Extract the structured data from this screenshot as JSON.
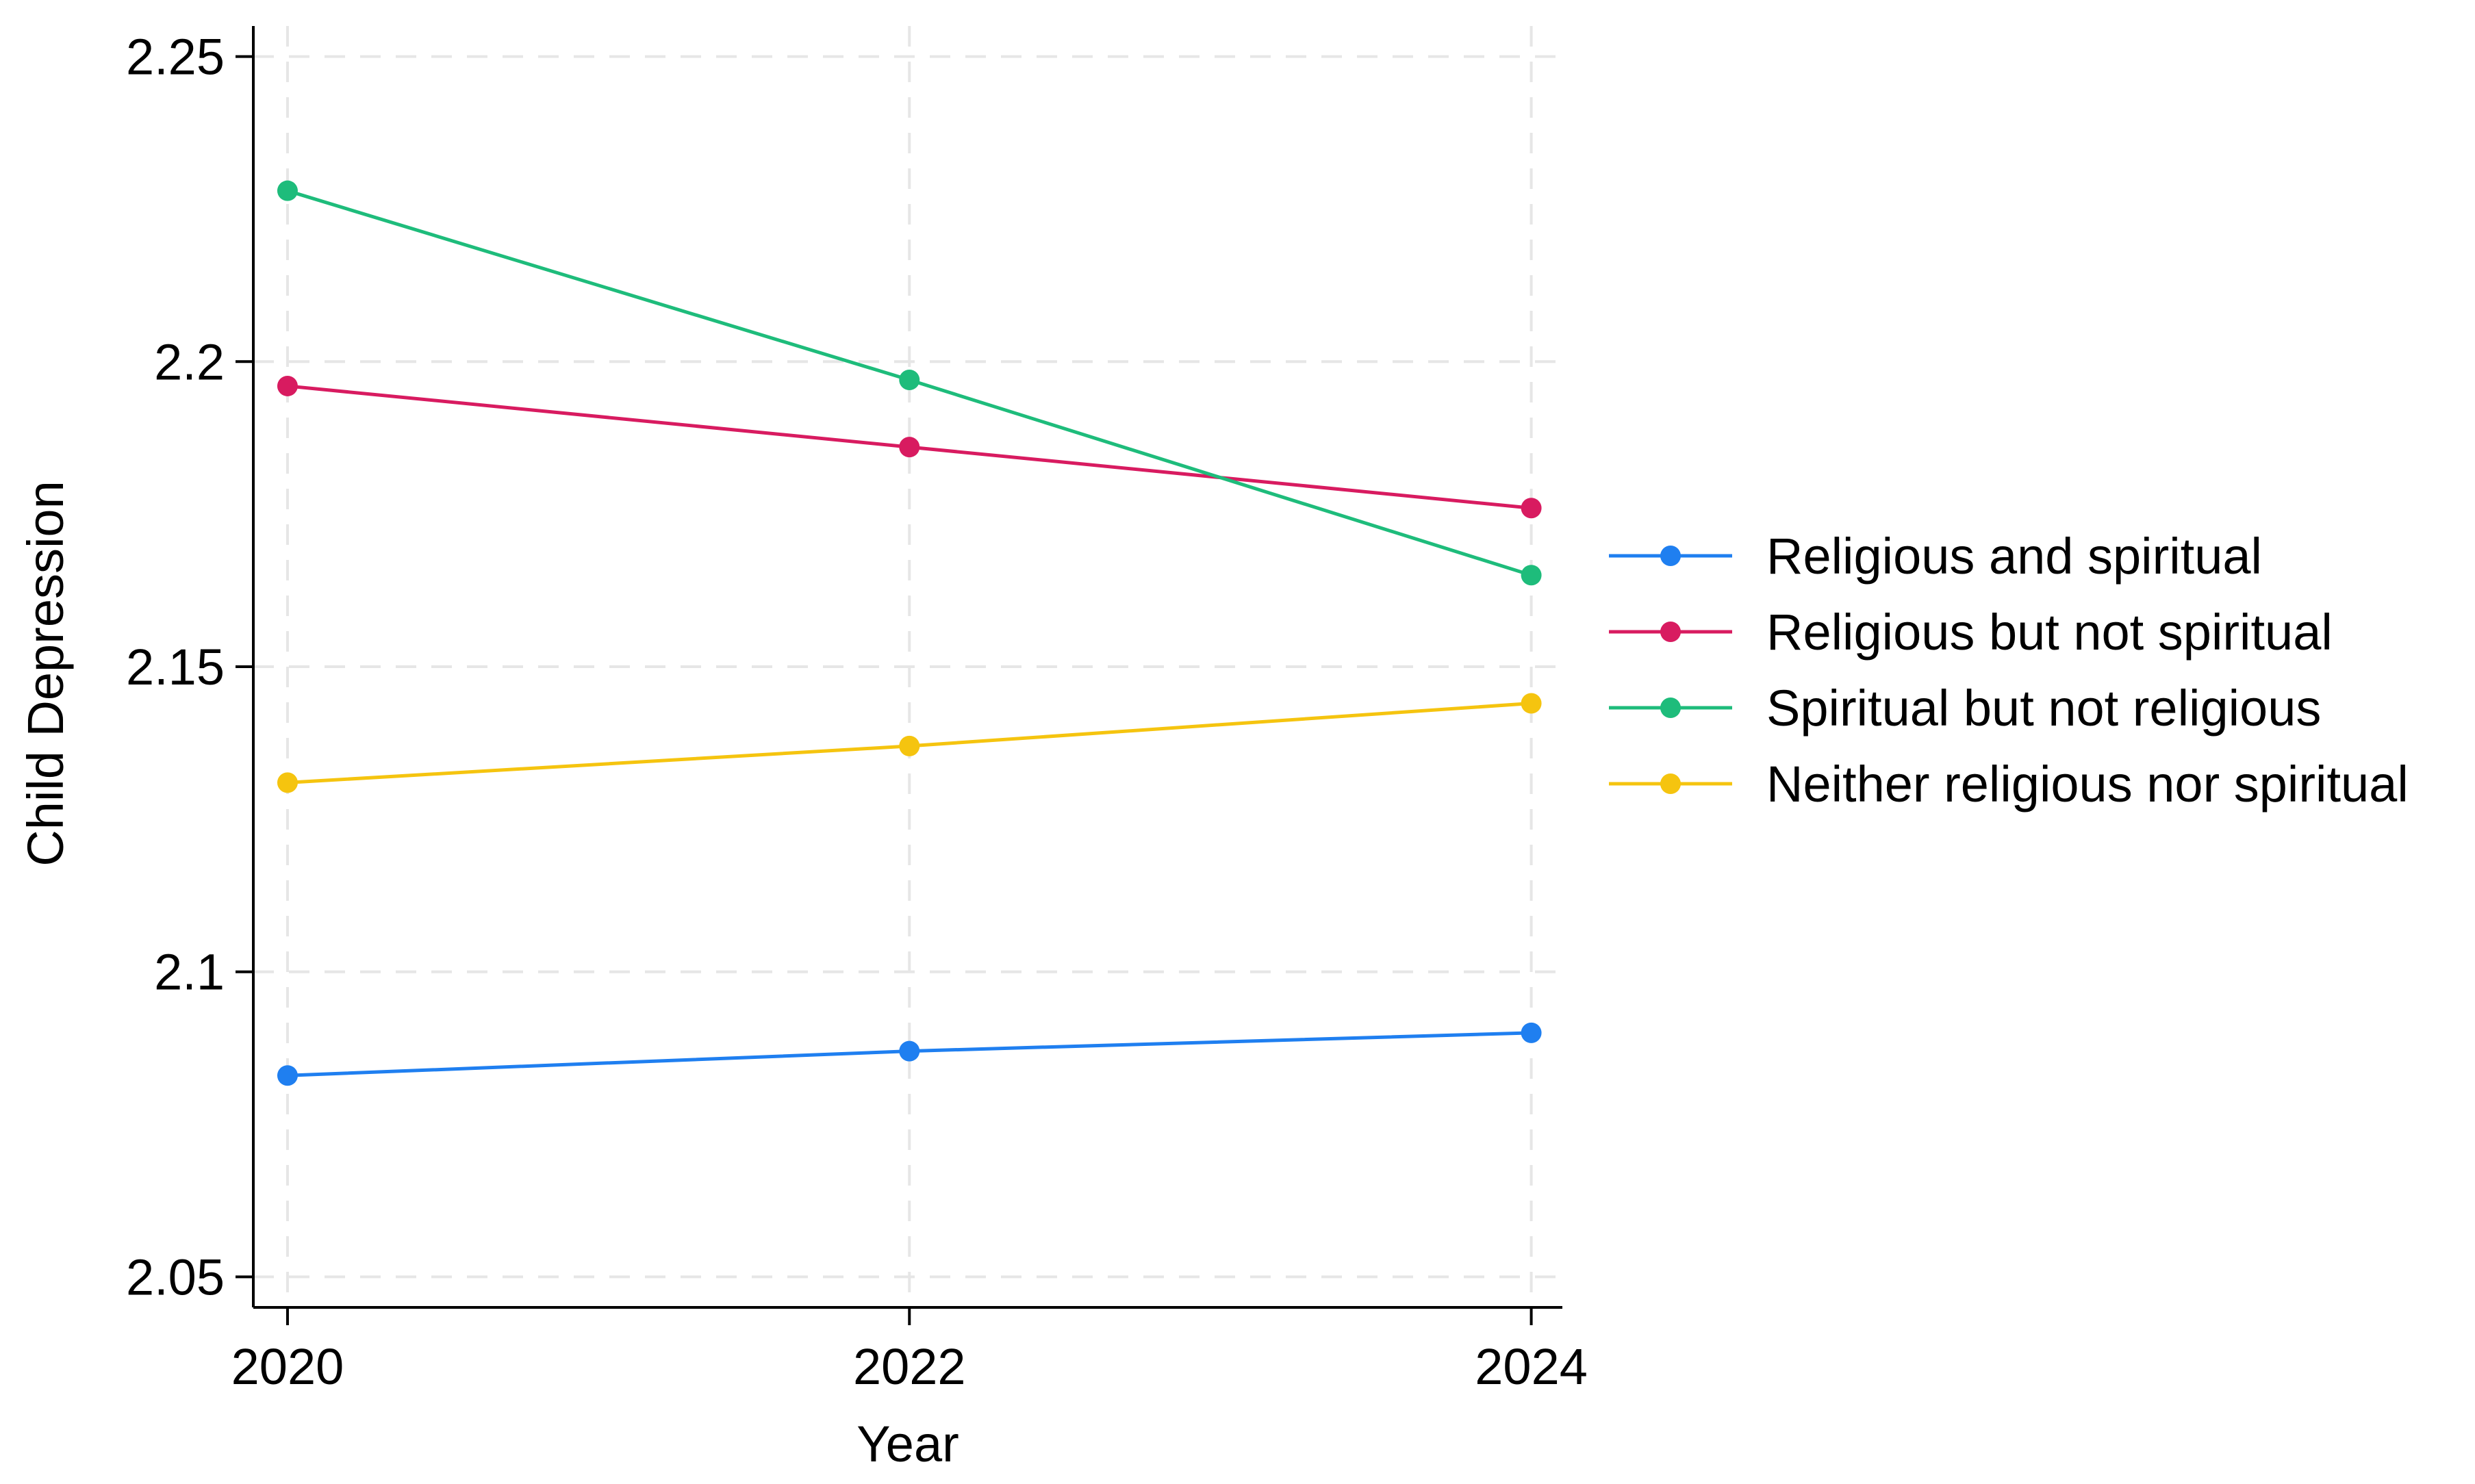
{
  "chart_data": {
    "type": "line",
    "title": "",
    "xlabel": "Year",
    "ylabel": "Child Depression",
    "x": [
      2020,
      2022,
      2024
    ],
    "x_ticks": [
      "2020",
      "2022",
      "2024"
    ],
    "y_ticks": [
      "2.05",
      "2.1",
      "2.15",
      "2.2",
      "2.25"
    ],
    "y_tick_values": [
      2.05,
      2.1,
      2.15,
      2.2,
      2.25
    ],
    "xlim": [
      2019.89,
      2024.1
    ],
    "ylim": [
      2.045,
      2.255
    ],
    "grid": true,
    "legend_position": "right",
    "series": [
      {
        "name": "Religious and spiritual",
        "color": "#1f7ff0",
        "values": [
          2.083,
          2.087,
          2.09
        ]
      },
      {
        "name": "Religious but not spiritual",
        "color": "#d81b60",
        "values": [
          2.196,
          2.186,
          2.176
        ]
      },
      {
        "name": "Spiritual but not religious",
        "color": "#1ebc7b",
        "values": [
          2.228,
          2.197,
          2.165
        ]
      },
      {
        "name": "Neither religious nor spiritual",
        "color": "#f5c40f",
        "values": [
          2.131,
          2.137,
          2.144
        ]
      }
    ]
  }
}
